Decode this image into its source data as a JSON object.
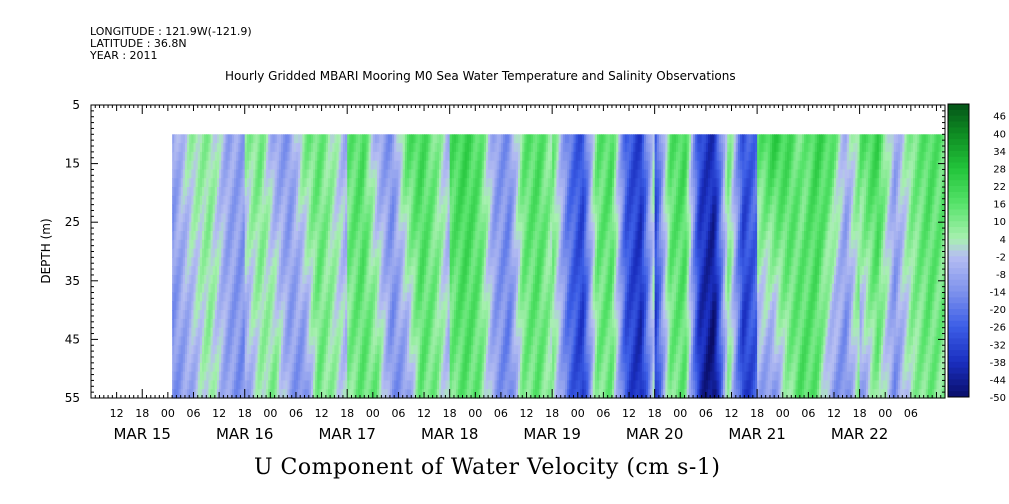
{
  "header": {
    "longitude": "LONGITUDE : 121.9W(-121.9)",
    "latitude": "LATITUDE : 36.8N",
    "year": "YEAR : 2011"
  },
  "chart_data": {
    "type": "heatmap",
    "title": "Hourly Gridded MBARI Mooring M0 Sea Water Temperature and Salinity Observations",
    "xlabel": "U Component of Water Velocity (cm s-1)",
    "ylabel": "DEPTH (m)",
    "ylim": [
      5,
      55
    ],
    "y_inverted": true,
    "y_ticks": [
      5,
      15,
      25,
      35,
      45,
      55
    ],
    "x_hours_per_day": 24,
    "x_range_hours": [
      0,
      200
    ],
    "x_day_starts": [
      {
        "hour": 12,
        "label": "MAR 15"
      },
      {
        "hour": 36,
        "label": "MAR 16"
      },
      {
        "hour": 60,
        "label": "MAR 17"
      },
      {
        "hour": 84,
        "label": "MAR 18"
      },
      {
        "hour": 108,
        "label": "MAR 19"
      },
      {
        "hour": 132,
        "label": "MAR 20"
      },
      {
        "hour": 156,
        "label": "MAR 21"
      },
      {
        "hour": 180,
        "label": "MAR 22"
      }
    ],
    "x_hour_ticks": [
      "12",
      "18",
      "00",
      "06",
      "12",
      "18",
      "00",
      "06",
      "12",
      "18",
      "00",
      "06",
      "12",
      "18",
      "00",
      "06",
      "12",
      "18",
      "00",
      "06",
      "12",
      "18",
      "00",
      "06",
      "12",
      "18",
      "00",
      "06",
      "12",
      "18",
      "00",
      "06"
    ],
    "data_start_hour": 19,
    "data_depth_top": 10,
    "colorbar": {
      "min": -50,
      "max": 50,
      "step": 2,
      "labels": [
        "46",
        "40",
        "34",
        "28",
        "22",
        "16",
        "10",
        "4",
        "-2",
        "-8",
        "-14",
        "-20",
        "-26",
        "-32",
        "-38",
        "-44",
        "-50"
      ],
      "stops": [
        {
          "v": -50,
          "c": "#0a0e6a"
        },
        {
          "v": -38,
          "c": "#1a2fc0"
        },
        {
          "v": -26,
          "c": "#3c5ee6"
        },
        {
          "v": -14,
          "c": "#7e92ec"
        },
        {
          "v": -2,
          "c": "#b6bef2"
        },
        {
          "v": 4,
          "c": "#a8f0b0"
        },
        {
          "v": 16,
          "c": "#56e36a"
        },
        {
          "v": 28,
          "c": "#22c43a"
        },
        {
          "v": 40,
          "c": "#0e8a22"
        },
        {
          "v": 50,
          "c": "#045418"
        }
      ]
    },
    "day_profiles": [
      {
        "day": "MAR 15 late",
        "hours": [
          19,
          36
        ],
        "values_top": [
          -10,
          5,
          8,
          -8,
          -10
        ],
        "values_bottom": [
          -14,
          -8,
          6,
          -10,
          -16
        ]
      },
      {
        "day": "MAR 16",
        "hours": [
          36,
          60
        ],
        "values_top": [
          6,
          12,
          -10,
          -12,
          10,
          14,
          4,
          -8
        ],
        "values_bottom": [
          -10,
          4,
          10,
          -10,
          -16,
          12,
          6,
          -4
        ]
      },
      {
        "day": "MAR 17",
        "hours": [
          60,
          84
        ],
        "values_top": [
          14,
          18,
          -8,
          -14,
          16,
          20,
          10,
          -6
        ],
        "values_bottom": [
          8,
          14,
          12,
          -14,
          -12,
          14,
          10,
          -6
        ]
      },
      {
        "day": "MAR 18",
        "hours": [
          84,
          108
        ],
        "values_top": [
          18,
          22,
          16,
          -10,
          -14,
          14,
          18,
          6
        ],
        "values_bottom": [
          10,
          16,
          12,
          -10,
          -18,
          10,
          14,
          4
        ]
      },
      {
        "day": "MAR 19",
        "hours": [
          108,
          132
        ],
        "values_top": [
          12,
          -18,
          -30,
          14,
          18,
          -26,
          -34,
          10
        ],
        "values_bottom": [
          6,
          -22,
          -36,
          10,
          12,
          -30,
          -40,
          4
        ]
      },
      {
        "day": "MAR 20",
        "hours": [
          132,
          156
        ],
        "values_top": [
          -28,
          16,
          20,
          -32,
          -38,
          12,
          -30,
          -20
        ],
        "values_bottom": [
          -34,
          10,
          14,
          -40,
          -50,
          8,
          -36,
          -26
        ]
      },
      {
        "day": "MAR 21",
        "hours": [
          156,
          180
        ],
        "values_top": [
          14,
          24,
          20,
          10,
          22,
          18,
          -6,
          12
        ],
        "values_bottom": [
          -8,
          -14,
          6,
          18,
          14,
          -10,
          -16,
          10
        ]
      },
      {
        "day": "MAR 22",
        "hours": [
          180,
          200
        ],
        "values_top": [
          16,
          22,
          -8,
          10,
          18,
          14
        ],
        "values_bottom": [
          -12,
          10,
          -14,
          6,
          12,
          8
        ]
      }
    ]
  }
}
